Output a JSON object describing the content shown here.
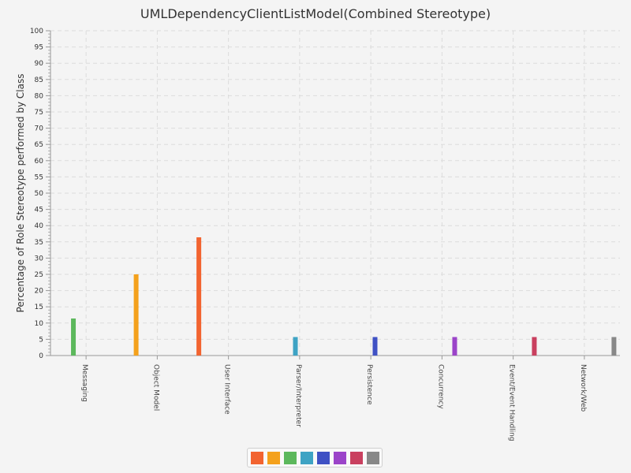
{
  "chart_data": {
    "type": "bar",
    "title": "UMLDependencyClientListModel(Combined Stereotype)",
    "xlabel": "",
    "ylabel": "Percentage of Role Stereotype performed by Class",
    "ylim": [
      0,
      100
    ],
    "yticks": [
      0,
      5,
      10,
      15,
      20,
      25,
      30,
      35,
      40,
      45,
      50,
      55,
      60,
      65,
      70,
      75,
      80,
      85,
      90,
      95,
      100
    ],
    "grid": true,
    "legend_position": "bottom",
    "categories": [
      "Messaging",
      "Object Model",
      "User Interface",
      "Parser/Interpreter",
      "Persistence",
      "Concurrency",
      "Event/Event Handling",
      "Network/Web"
    ],
    "series": [
      {
        "color": "#f26430",
        "values": [
          0,
          0,
          36.4,
          0,
          0,
          0,
          0,
          0
        ]
      },
      {
        "color": "#f4a11c",
        "values": [
          0,
          25,
          0,
          0,
          0,
          0,
          0,
          0
        ]
      },
      {
        "color": "#5cb85c",
        "values": [
          11.4,
          0,
          0,
          0,
          0,
          0,
          0,
          0
        ]
      },
      {
        "color": "#3ea3c4",
        "values": [
          0,
          0,
          0,
          5.7,
          0,
          0,
          0,
          0
        ]
      },
      {
        "color": "#3f51c4",
        "values": [
          0,
          0,
          0,
          0,
          5.7,
          0,
          0,
          0
        ]
      },
      {
        "color": "#9b44c9",
        "values": [
          0,
          0,
          0,
          0,
          0,
          5.7,
          0,
          0
        ]
      },
      {
        "color": "#c9405f",
        "values": [
          0,
          0,
          0,
          0,
          0,
          0,
          5.7,
          0
        ]
      },
      {
        "color": "#888888",
        "values": [
          0,
          0,
          0,
          0,
          0,
          0,
          0,
          5.7
        ]
      }
    ]
  }
}
